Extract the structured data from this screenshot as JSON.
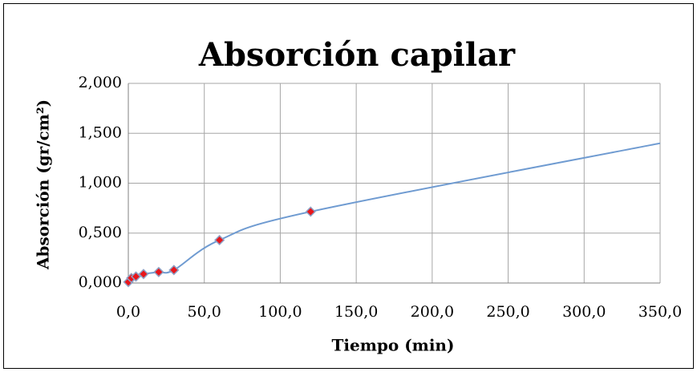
{
  "chart_data": {
    "type": "scatter",
    "title": "Absorción capilar",
    "xlabel": "Tiempo (min)",
    "ylabel": "Absorción (gr/cm²)",
    "series": [
      {
        "color": "#e8161b",
        "stroke": "#8fa0c4",
        "marker": true,
        "line": false,
        "x": [
          0,
          2,
          5,
          10,
          20,
          30,
          60,
          120
        ],
        "values": [
          0.01,
          0.05,
          0.065,
          0.09,
          0.11,
          0.13,
          0.43,
          0.715
        ]
      },
      {
        "color": "#6f9bd1",
        "marker": false,
        "line": true,
        "smooth": true,
        "x": [
          0,
          2,
          5,
          10,
          20,
          30,
          60,
          120,
          350
        ],
        "values": [
          0.01,
          0.05,
          0.065,
          0.09,
          0.11,
          0.13,
          0.43,
          0.715,
          1.4
        ]
      }
    ],
    "xlim": [
      0,
      350
    ],
    "xticks": [
      {
        "value": 0,
        "label": "0,0"
      },
      {
        "value": 50,
        "label": "50,0"
      },
      {
        "value": 100,
        "label": "100,0"
      },
      {
        "value": 150,
        "label": "150,0"
      },
      {
        "value": 200,
        "label": "200,0"
      },
      {
        "value": 250,
        "label": "250,0"
      },
      {
        "value": 300,
        "label": "300,0"
      },
      {
        "value": 350,
        "label": "350,0"
      }
    ],
    "ylim": [
      0,
      2
    ],
    "yticks": [
      {
        "value": 0,
        "label": "0,000"
      },
      {
        "value": 0.5,
        "label": "0,500"
      },
      {
        "value": 1,
        "label": "1,000"
      },
      {
        "value": 1.5,
        "label": "1,500"
      },
      {
        "value": 2,
        "label": "2,000"
      }
    ],
    "grid": true
  }
}
